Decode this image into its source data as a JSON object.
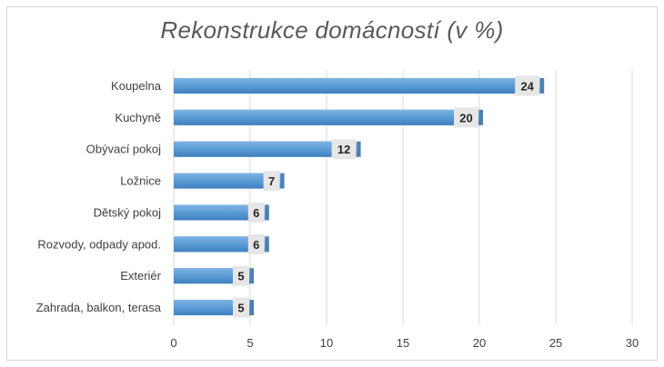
{
  "chart_data": {
    "type": "bar",
    "orientation": "horizontal",
    "title": "Rekonstrukce domácností (v %)",
    "categories": [
      "Koupelna",
      "Kuchyně",
      "Obývací pokoj",
      "Ložnice",
      "Dětský pokoj",
      "Rozvody, odpady apod.",
      "Exteriér",
      "Zahrada, balkon, terasa"
    ],
    "values": [
      24,
      20,
      12,
      7,
      6,
      6,
      5,
      5
    ],
    "xlim": [
      0,
      30
    ],
    "xticks": [
      0,
      5,
      10,
      15,
      20,
      25,
      30
    ],
    "grid": true,
    "data_labels": true,
    "bar_color": "#5b9bd5",
    "label_box_color": "#e7e6e6"
  }
}
